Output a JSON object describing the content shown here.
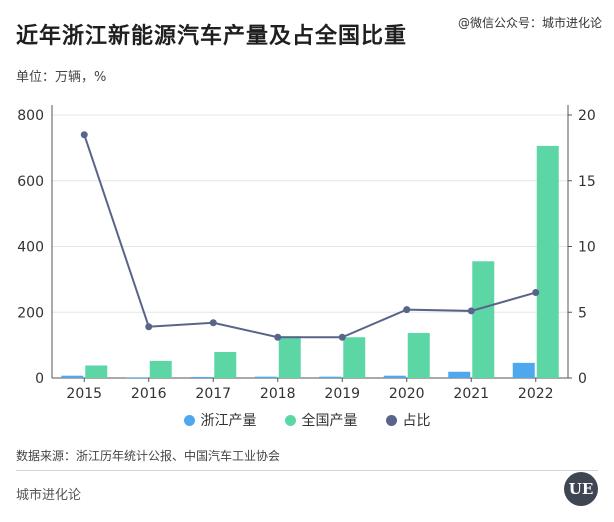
{
  "title": "近年浙江新能源汽车产量及占全国比重",
  "watermark": "@微信公众号：城市进化论",
  "unit_label": "单位：万辆，%",
  "source": "数据来源：浙江历年统计公报、中国汽车工业协会",
  "brand": "城市进化论",
  "logo_text": "UE",
  "colors": {
    "zhejiang": "#4fa8ee",
    "national": "#5dd6a6",
    "share": "#58648a"
  },
  "chart_data": {
    "type": "bar",
    "categories": [
      "2015",
      "2016",
      "2017",
      "2018",
      "2019",
      "2020",
      "2021",
      "2022"
    ],
    "series": [
      {
        "name": "浙江产量",
        "kind": "bar",
        "axis": "left",
        "values": [
          7,
          2,
          3,
          4,
          4,
          7,
          19,
          46
        ]
      },
      {
        "name": "全国产量",
        "kind": "bar",
        "axis": "left",
        "values": [
          38,
          52,
          79,
          127,
          124,
          137,
          355,
          706
        ]
      },
      {
        "name": "占比",
        "kind": "line",
        "axis": "right",
        "values": [
          18.5,
          3.9,
          4.2,
          3.1,
          3.1,
          5.2,
          5.1,
          6.5
        ]
      }
    ],
    "y_left": {
      "ylim": [
        0,
        800
      ],
      "ticks": [
        "0",
        "200",
        "400",
        "600",
        "800"
      ]
    },
    "y_right": {
      "ylim": [
        0,
        20
      ],
      "ticks": [
        "0",
        "5",
        "10",
        "15",
        "20"
      ]
    },
    "grid": true,
    "legend": "bottom-center"
  }
}
